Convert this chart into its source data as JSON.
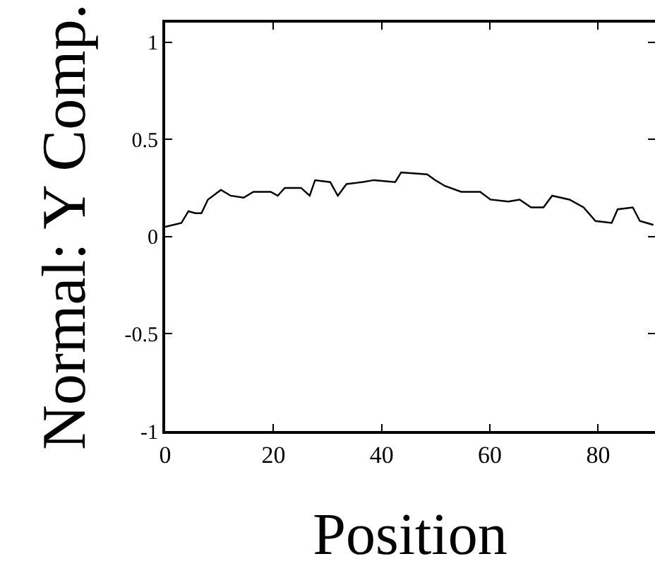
{
  "chart_data": {
    "type": "line",
    "xlabel": "Position",
    "ylabel": "Normal: Y Comp.",
    "x": [
      0,
      3,
      4.3,
      5.6,
      6.7,
      7.9,
      10.3,
      12.1,
      14.5,
      16.3,
      19.5,
      20.8,
      22.1,
      25.1,
      26.7,
      27.7,
      30.5,
      31.9,
      33.5,
      36.4,
      38.6,
      42.5,
      43.6,
      48.4,
      49.9,
      51.7,
      54.7,
      58.2,
      60.1,
      63.4,
      65.5,
      67.6,
      69.9,
      71.5,
      74.7,
      77.3,
      79.5,
      82.5,
      83.6,
      86.4,
      87.7,
      90.2
    ],
    "series": [
      {
        "color": "#000000",
        "values": [
          0.05,
          0.07,
          0.13,
          0.12,
          0.12,
          0.19,
          0.24,
          0.21,
          0.2,
          0.23,
          0.23,
          0.21,
          0.25,
          0.25,
          0.21,
          0.29,
          0.28,
          0.21,
          0.27,
          0.28,
          0.29,
          0.28,
          0.33,
          0.32,
          0.29,
          0.26,
          0.23,
          0.23,
          0.19,
          0.18,
          0.19,
          0.15,
          0.15,
          0.21,
          0.19,
          0.15,
          0.08,
          0.07,
          0.14,
          0.15,
          0.08,
          0.06
        ]
      }
    ],
    "xlim": [
      0,
      90.5
    ],
    "ylim": [
      -1,
      1.1
    ],
    "xticks": [
      0,
      20,
      40,
      60,
      80
    ],
    "yticks": [
      -1,
      -0.5,
      0,
      0.5,
      1
    ],
    "grid": false,
    "marker": "none",
    "line_style": "solid"
  }
}
